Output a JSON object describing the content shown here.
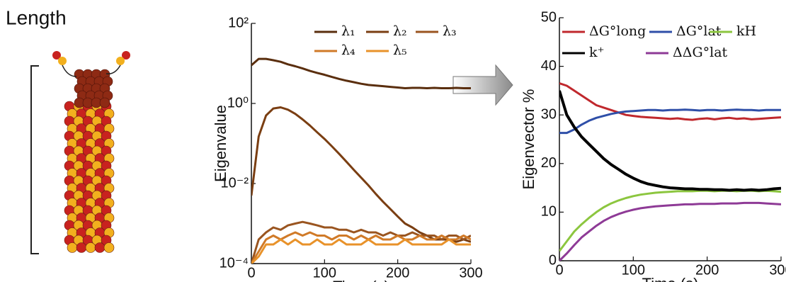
{
  "panel_label": "Length",
  "chart_data": [
    {
      "type": "line",
      "yscale": "log",
      "xlabel": "Time (s)",
      "ylabel": "Eigenvalue",
      "x": [
        0,
        10,
        20,
        30,
        40,
        50,
        60,
        70,
        80,
        90,
        100,
        110,
        120,
        130,
        140,
        150,
        160,
        170,
        180,
        190,
        200,
        210,
        220,
        230,
        240,
        250,
        260,
        270,
        280,
        290,
        300
      ],
      "xlim": [
        0,
        300
      ],
      "xticks": [
        0,
        100,
        200,
        300
      ],
      "ylim": [
        0.0001,
        100
      ],
      "yticks": [
        {
          "value": 0.0001,
          "label": "10⁻⁴"
        },
        {
          "value": 0.01,
          "label": "10⁻²"
        },
        {
          "value": 1,
          "label": "10⁰"
        },
        {
          "value": 100,
          "label": "10²"
        }
      ],
      "series": [
        {
          "name": "λ₁",
          "color": "#5a2e0e",
          "values": [
            9,
            13,
            13,
            12,
            11,
            9.5,
            8.5,
            7.5,
            6.5,
            5.8,
            5.2,
            4.6,
            4.1,
            3.7,
            3.4,
            3.1,
            2.9,
            2.8,
            2.7,
            2.6,
            2.5,
            2.4,
            2.45,
            2.45,
            2.4,
            2.45,
            2.4,
            2.4,
            2.45,
            2.4,
            2.4
          ]
        },
        {
          "name": "λ₂",
          "color": "#7a3e12",
          "values": [
            0.005,
            0.15,
            0.5,
            0.75,
            0.8,
            0.7,
            0.55,
            0.4,
            0.28,
            0.19,
            0.13,
            0.085,
            0.055,
            0.035,
            0.022,
            0.014,
            0.009,
            0.0055,
            0.0035,
            0.0023,
            0.0015,
            0.001,
            0.0008,
            0.0006,
            0.0005,
            0.0004,
            0.0004,
            0.0004,
            0.00035,
            0.0004,
            0.00035
          ]
        },
        {
          "name": "λ₃",
          "color": "#9a5520",
          "values": [
            0.0001,
            0.0004,
            0.0006,
            0.0008,
            0.0007,
            0.0009,
            0.001,
            0.0011,
            0.001,
            0.0009,
            0.0008,
            0.0008,
            0.0007,
            0.0007,
            0.0006,
            0.0007,
            0.0006,
            0.0006,
            0.0005,
            0.0006,
            0.0005,
            0.0005,
            0.0006,
            0.0005,
            0.0005,
            0.0005,
            0.0004,
            0.0005,
            0.0005,
            0.0004,
            0.0005
          ]
        },
        {
          "name": "λ₄",
          "color": "#d07a28",
          "values": [
            0.0001,
            0.0002,
            0.0004,
            0.0005,
            0.0004,
            0.0005,
            0.0006,
            0.0005,
            0.0006,
            0.0005,
            0.0005,
            0.0004,
            0.0005,
            0.0005,
            0.0004,
            0.0005,
            0.0004,
            0.0005,
            0.0004,
            0.0004,
            0.0005,
            0.0004,
            0.0004,
            0.0005,
            0.0004,
            0.0004,
            0.0005,
            0.0004,
            0.0004,
            0.0005,
            0.0004
          ]
        },
        {
          "name": "λ₅",
          "color": "#e8922a",
          "values": [
            0.0001,
            0.00015,
            0.0003,
            0.0003,
            0.0004,
            0.0003,
            0.0004,
            0.0003,
            0.0003,
            0.0004,
            0.0003,
            0.0003,
            0.0004,
            0.0003,
            0.0003,
            0.0003,
            0.0004,
            0.0003,
            0.0003,
            0.0003,
            0.0003,
            0.0004,
            0.0003,
            0.0003,
            0.0003,
            0.0003,
            0.0003,
            0.0004,
            0.0003,
            0.0003,
            0.0003
          ]
        }
      ]
    },
    {
      "type": "line",
      "xlabel": "Time (s)",
      "ylabel": "Eigenvector %",
      "x": [
        0,
        10,
        20,
        30,
        40,
        50,
        60,
        70,
        80,
        90,
        100,
        110,
        120,
        130,
        140,
        150,
        160,
        170,
        180,
        190,
        200,
        210,
        220,
        230,
        240,
        250,
        260,
        270,
        280,
        290,
        300
      ],
      "xlim": [
        0,
        300
      ],
      "xticks": [
        0,
        100,
        200,
        300
      ],
      "ylim": [
        0,
        50
      ],
      "yticks": [
        0,
        10,
        20,
        30,
        40,
        50
      ],
      "series": [
        {
          "name": "ΔG°long",
          "color": "#c0282d",
          "values": [
            36.5,
            36,
            35,
            34,
            33,
            32,
            31.5,
            31,
            30.5,
            30,
            29.8,
            29.6,
            29.5,
            29.4,
            29.3,
            29.2,
            29.3,
            29.1,
            29,
            29.2,
            29.3,
            29.1,
            29.3,
            29.4,
            29.2,
            29.3,
            29.1,
            29.2,
            29.3,
            29.4,
            29.5
          ]
        },
        {
          "name": "ΔG°lat",
          "color": "#2f4fa8",
          "values": [
            26.3,
            26.3,
            27,
            28,
            28.8,
            29.4,
            29.8,
            30.2,
            30.5,
            30.7,
            30.8,
            30.9,
            31,
            31,
            30.9,
            31,
            31,
            31.1,
            31,
            30.9,
            31,
            31,
            30.9,
            31,
            31.1,
            31,
            31,
            30.9,
            31,
            31,
            31
          ]
        },
        {
          "name": "kH",
          "color": "#8cc63f",
          "values": [
            2,
            4,
            6,
            7.5,
            8.8,
            10,
            11,
            11.8,
            12.4,
            12.9,
            13.3,
            13.6,
            13.8,
            14,
            14.1,
            14.2,
            14.3,
            14.3,
            14.3,
            14.4,
            14.4,
            14.3,
            14.4,
            14.4,
            14.3,
            14.4,
            14.4,
            14.3,
            14.4,
            14.3,
            14.2
          ]
        },
        {
          "name": "k⁺",
          "color": "#000000",
          "values": [
            35,
            30,
            27.5,
            25.5,
            24,
            22.5,
            21,
            19.8,
            18.8,
            17.8,
            17,
            16.3,
            15.8,
            15.5,
            15.2,
            15,
            14.9,
            14.8,
            14.8,
            14.7,
            14.7,
            14.6,
            14.6,
            14.5,
            14.6,
            14.5,
            14.6,
            14.5,
            14.6,
            14.8,
            14.9
          ]
        },
        {
          "name": "ΔΔG°lat",
          "color": "#8e3a96",
          "values": [
            0,
            1.5,
            3.2,
            4.8,
            6,
            7.2,
            8.2,
            9,
            9.6,
            10.1,
            10.5,
            10.8,
            11,
            11.2,
            11.3,
            11.4,
            11.5,
            11.6,
            11.6,
            11.7,
            11.7,
            11.7,
            11.8,
            11.8,
            11.8,
            11.9,
            11.9,
            11.9,
            11.8,
            11.7,
            11.6
          ]
        }
      ]
    }
  ]
}
